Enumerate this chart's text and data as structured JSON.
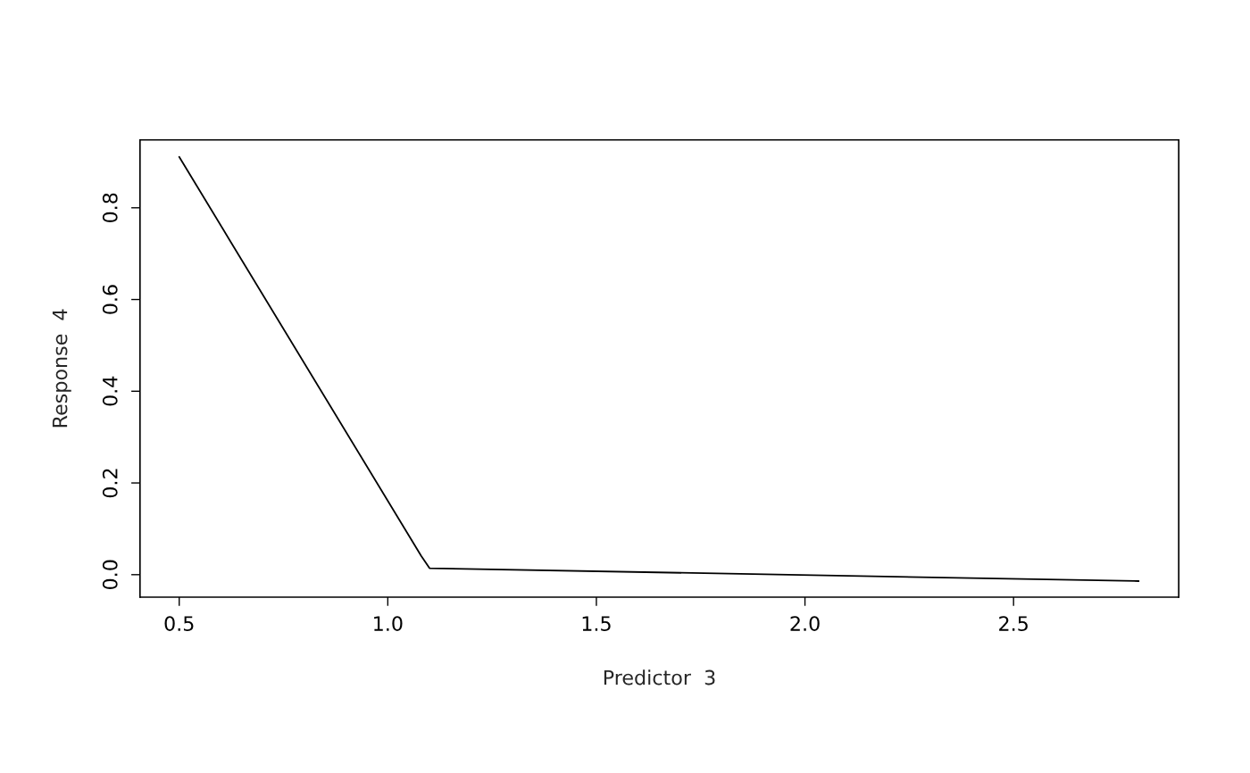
{
  "chart_data": {
    "type": "line",
    "xlabel": "Predictor  3",
    "ylabel": "Response  4",
    "x": [
      0.5,
      1.08,
      1.1,
      2.8
    ],
    "series": [
      {
        "color": "#000000",
        "values": [
          0.911,
          0.041,
          0.014,
          -0.014
        ]
      }
    ],
    "xlim": [
      0.406,
      2.896
    ],
    "ylim": [
      -0.049,
      0.948
    ],
    "xticks": [
      {
        "value": 0.5,
        "label": "0.5"
      },
      {
        "value": 1.0,
        "label": "1.0"
      },
      {
        "value": 1.5,
        "label": "1.5"
      },
      {
        "value": 2.0,
        "label": "2.0"
      },
      {
        "value": 2.5,
        "label": "2.5"
      }
    ],
    "yticks": [
      {
        "value": 0.0,
        "label": "0.0"
      },
      {
        "value": 0.2,
        "label": "0.2"
      },
      {
        "value": 0.4,
        "label": "0.4"
      },
      {
        "value": 0.6,
        "label": "0.6"
      },
      {
        "value": 0.8,
        "label": "0.8"
      }
    ],
    "grid": false,
    "legend": false
  }
}
